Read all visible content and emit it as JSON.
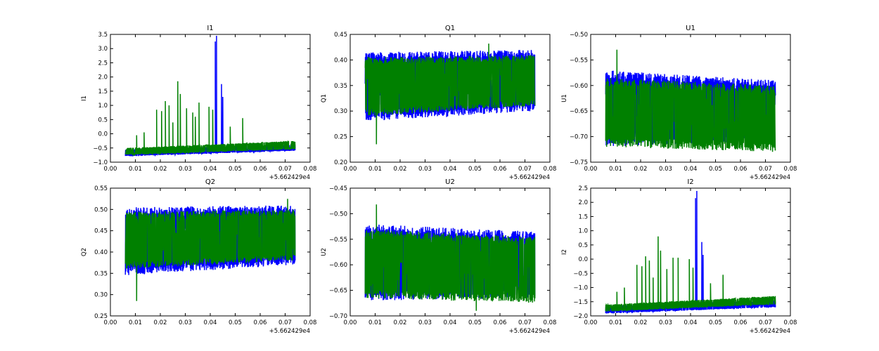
{
  "chart_data": [
    {
      "type": "line",
      "title": "I1",
      "ylabel": "I1",
      "xlim": [
        0,
        0.08
      ],
      "ylim": [
        -1.0,
        3.5
      ],
      "xticks": [
        "0.00",
        "0.01",
        "0.02",
        "0.03",
        "0.04",
        "0.05",
        "0.06",
        "0.07",
        "0.08"
      ],
      "yticks": [
        "-1.0",
        "-0.5",
        "0.0",
        "0.5",
        "1.0",
        "1.5",
        "2.0",
        "2.5",
        "3.0",
        "3.5"
      ],
      "x_offset": "+5.662429e4",
      "series": [
        {
          "name": "blue",
          "color": "#0000ff",
          "x_range": [
            0.006,
            0.074
          ],
          "band_start": [
            -0.8,
            -0.55
          ],
          "band_end": [
            -0.6,
            -0.38
          ],
          "spikes": [
            [
              0.042,
              3.25
            ],
            [
              0.0425,
              3.45
            ],
            [
              0.0445,
              1.75
            ],
            [
              0.045,
              1.3
            ]
          ]
        },
        {
          "name": "green",
          "color": "#008000",
          "x_range": [
            0.006,
            0.074
          ],
          "band_start": [
            -0.75,
            -0.5
          ],
          "band_end": [
            -0.55,
            -0.25
          ],
          "spikes": [
            [
              0.0105,
              -0.05
            ],
            [
              0.0135,
              0.05
            ],
            [
              0.0185,
              0.85
            ],
            [
              0.0205,
              0.8
            ],
            [
              0.022,
              1.15
            ],
            [
              0.0235,
              1.0
            ],
            [
              0.025,
              0.4
            ],
            [
              0.027,
              1.85
            ],
            [
              0.028,
              1.4
            ],
            [
              0.0305,
              0.9
            ],
            [
              0.033,
              0.75
            ],
            [
              0.034,
              0.6
            ],
            [
              0.0355,
              1.1
            ],
            [
              0.0395,
              0.95
            ],
            [
              0.041,
              0.85
            ],
            [
              0.048,
              0.25
            ],
            [
              0.053,
              0.55
            ]
          ]
        }
      ]
    },
    {
      "type": "line",
      "title": "Q1",
      "ylabel": "Q1",
      "xlim": [
        0,
        0.08
      ],
      "ylim": [
        0.2,
        0.45
      ],
      "xticks": [
        "0.00",
        "0.01",
        "0.02",
        "0.03",
        "0.04",
        "0.05",
        "0.06",
        "0.07",
        "0.08"
      ],
      "yticks": [
        "0.20",
        "0.25",
        "0.30",
        "0.35",
        "0.40",
        "0.45"
      ],
      "x_offset": "+5.662429e4",
      "series": [
        {
          "name": "blue",
          "color": "#0000ff",
          "x_range": [
            0.006,
            0.074
          ],
          "band_start": [
            0.28,
            0.415
          ],
          "band_end": [
            0.3,
            0.42
          ],
          "spikes": []
        },
        {
          "name": "green",
          "color": "#008000",
          "x_range": [
            0.006,
            0.074
          ],
          "band_start": [
            0.29,
            0.405
          ],
          "band_end": [
            0.31,
            0.41
          ],
          "spikes": [
            [
              0.0105,
              0.235
            ],
            [
              0.0555,
              0.432
            ]
          ]
        }
      ]
    },
    {
      "type": "line",
      "title": "U1",
      "ylabel": "U1",
      "xlim": [
        0,
        0.08
      ],
      "ylim": [
        -0.75,
        -0.5
      ],
      "xticks": [
        "0.00",
        "0.01",
        "0.02",
        "0.03",
        "0.04",
        "0.05",
        "0.06",
        "0.07",
        "0.08"
      ],
      "yticks": [
        "-0.75",
        "-0.70",
        "-0.65",
        "-0.60",
        "-0.55",
        "-0.50"
      ],
      "x_offset": "+5.662429e4",
      "series": [
        {
          "name": "blue",
          "color": "#0000ff",
          "x_range": [
            0.006,
            0.074
          ],
          "band_start": [
            -0.72,
            -0.57
          ],
          "band_end": [
            -0.71,
            -0.59
          ],
          "spikes": []
        },
        {
          "name": "green",
          "color": "#008000",
          "x_range": [
            0.006,
            0.074
          ],
          "band_start": [
            -0.72,
            -0.585
          ],
          "band_end": [
            -0.73,
            -0.6
          ],
          "spikes": [
            [
              0.0105,
              -0.53
            ]
          ]
        }
      ]
    },
    {
      "type": "line",
      "title": "Q2",
      "ylabel": "Q2",
      "xlim": [
        0,
        0.08
      ],
      "ylim": [
        0.25,
        0.55
      ],
      "xticks": [
        "0.00",
        "0.01",
        "0.02",
        "0.03",
        "0.04",
        "0.05",
        "0.06",
        "0.07",
        "0.08"
      ],
      "yticks": [
        "0.25",
        "0.30",
        "0.35",
        "0.40",
        "0.45",
        "0.50",
        "0.55"
      ],
      "x_offset": "+5.662429e4",
      "series": [
        {
          "name": "blue",
          "color": "#0000ff",
          "x_range": [
            0.006,
            0.074
          ],
          "band_start": [
            0.345,
            0.505
          ],
          "band_end": [
            0.37,
            0.51
          ],
          "spikes": []
        },
        {
          "name": "green",
          "color": "#008000",
          "x_range": [
            0.006,
            0.074
          ],
          "band_start": [
            0.36,
            0.495
          ],
          "band_end": [
            0.38,
            0.5
          ],
          "spikes": [
            [
              0.0105,
              0.285
            ],
            [
              0.071,
              0.525
            ]
          ]
        }
      ]
    },
    {
      "type": "line",
      "title": "U2",
      "ylabel": "U2",
      "xlim": [
        0,
        0.08
      ],
      "ylim": [
        -0.7,
        -0.45
      ],
      "xticks": [
        "0.00",
        "0.01",
        "0.02",
        "0.03",
        "0.04",
        "0.05",
        "0.06",
        "0.07",
        "0.08"
      ],
      "yticks": [
        "-0.70",
        "-0.65",
        "-0.60",
        "-0.55",
        "-0.50",
        "-0.45"
      ],
      "x_offset": "+5.662429e4",
      "series": [
        {
          "name": "blue",
          "color": "#0000ff",
          "x_range": [
            0.006,
            0.074
          ],
          "band_start": [
            -0.67,
            -0.52
          ],
          "band_end": [
            -0.665,
            -0.535
          ],
          "spikes": []
        },
        {
          "name": "green",
          "color": "#008000",
          "x_range": [
            0.006,
            0.074
          ],
          "band_start": [
            -0.665,
            -0.53
          ],
          "band_end": [
            -0.675,
            -0.545
          ],
          "spikes": [
            [
              0.0105,
              -0.482
            ],
            [
              0.0505,
              -0.69
            ]
          ]
        }
      ]
    },
    {
      "type": "line",
      "title": "I2",
      "ylabel": "I2",
      "xlim": [
        0,
        0.08
      ],
      "ylim": [
        -2.0,
        2.5
      ],
      "xticks": [
        "0.00",
        "0.01",
        "0.02",
        "0.03",
        "0.04",
        "0.05",
        "0.06",
        "0.07",
        "0.08"
      ],
      "yticks": [
        "-2.0",
        "-1.5",
        "-1.0",
        "-0.5",
        "0.0",
        "0.5",
        "1.0",
        "1.5",
        "2.0",
        "2.5"
      ],
      "x_offset": "+5.662429e4",
      "series": [
        {
          "name": "blue",
          "color": "#0000ff",
          "x_range": [
            0.006,
            0.074
          ],
          "band_start": [
            -1.92,
            -1.65
          ],
          "band_end": [
            -1.7,
            -1.45
          ],
          "spikes": [
            [
              0.042,
              2.15
            ],
            [
              0.0425,
              2.4
            ],
            [
              0.0445,
              0.6
            ],
            [
              0.045,
              0.15
            ]
          ]
        },
        {
          "name": "green",
          "color": "#008000",
          "x_range": [
            0.006,
            0.074
          ],
          "band_start": [
            -1.85,
            -1.6
          ],
          "band_end": [
            -1.6,
            -1.3
          ],
          "spikes": [
            [
              0.0105,
              -1.15
            ],
            [
              0.0135,
              -1.0
            ],
            [
              0.0185,
              -0.2
            ],
            [
              0.0205,
              -0.25
            ],
            [
              0.022,
              0.1
            ],
            [
              0.0235,
              -0.05
            ],
            [
              0.025,
              -0.65
            ],
            [
              0.027,
              0.8
            ],
            [
              0.028,
              0.3
            ],
            [
              0.0305,
              -0.35
            ],
            [
              0.033,
              0.05
            ],
            [
              0.035,
              0.05
            ],
            [
              0.0395,
              0.0
            ],
            [
              0.041,
              -0.3
            ],
            [
              0.048,
              -0.85
            ],
            [
              0.053,
              -0.55
            ]
          ]
        }
      ]
    }
  ]
}
